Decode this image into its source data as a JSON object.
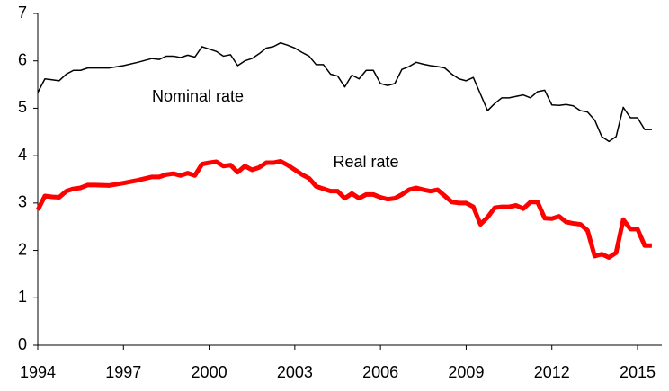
{
  "chart_data": {
    "type": "line",
    "x": [
      1994,
      1994.25,
      1994.5,
      1994.75,
      1995,
      1995.25,
      1995.5,
      1995.75,
      1996,
      1996.5,
      1997,
      1997.5,
      1998,
      1998.25,
      1998.5,
      1998.75,
      1999,
      1999.25,
      1999.5,
      1999.75,
      2000,
      2000.25,
      2000.5,
      2000.75,
      2001,
      2001.25,
      2001.5,
      2001.75,
      2002,
      2002.25,
      2002.5,
      2002.75,
      2003,
      2003.25,
      2003.5,
      2003.75,
      2004,
      2004.25,
      2004.5,
      2004.75,
      2005,
      2005.25,
      2005.5,
      2005.75,
      2006,
      2006.25,
      2006.5,
      2006.75,
      2007,
      2007.25,
      2007.5,
      2007.75,
      2008,
      2008.25,
      2008.5,
      2008.75,
      2009,
      2009.25,
      2009.5,
      2009.75,
      2010,
      2010.25,
      2010.5,
      2010.75,
      2011,
      2011.25,
      2011.5,
      2011.75,
      2012,
      2012.25,
      2012.5,
      2012.75,
      2013,
      2013.25,
      2013.5,
      2013.75,
      2014,
      2014.25,
      2014.5,
      2014.75,
      2015,
      2015.25,
      2015.5
    ],
    "series": [
      {
        "name": "Nominal rate",
        "color": "#000000",
        "width": 1.5,
        "values": [
          5.33,
          5.62,
          5.6,
          5.58,
          5.72,
          5.8,
          5.8,
          5.85,
          5.85,
          5.85,
          5.9,
          5.97,
          6.05,
          6.03,
          6.1,
          6.1,
          6.07,
          6.12,
          6.08,
          6.3,
          6.25,
          6.2,
          6.1,
          6.13,
          5.9,
          6.0,
          6.05,
          6.15,
          6.27,
          6.3,
          6.38,
          6.33,
          6.27,
          6.18,
          6.1,
          5.92,
          5.92,
          5.72,
          5.68,
          5.45,
          5.7,
          5.62,
          5.8,
          5.8,
          5.52,
          5.48,
          5.52,
          5.82,
          5.88,
          5.97,
          5.93,
          5.9,
          5.88,
          5.85,
          5.72,
          5.62,
          5.58,
          5.65,
          5.3,
          4.95,
          5.1,
          5.22,
          5.22,
          5.25,
          5.28,
          5.22,
          5.35,
          5.38,
          5.07,
          5.06,
          5.08,
          5.05,
          4.95,
          4.92,
          4.75,
          4.4,
          4.3,
          4.4,
          5.02,
          4.8,
          4.8,
          4.55,
          4.55
        ]
      },
      {
        "name": "Real rate",
        "color": "#ff0000",
        "width": 5,
        "values": [
          2.85,
          3.15,
          3.13,
          3.12,
          3.25,
          3.3,
          3.32,
          3.38,
          3.38,
          3.37,
          3.42,
          3.48,
          3.55,
          3.55,
          3.6,
          3.62,
          3.58,
          3.63,
          3.58,
          3.82,
          3.85,
          3.87,
          3.78,
          3.8,
          3.65,
          3.78,
          3.7,
          3.75,
          3.85,
          3.85,
          3.88,
          3.8,
          3.7,
          3.6,
          3.52,
          3.35,
          3.3,
          3.25,
          3.25,
          3.1,
          3.2,
          3.1,
          3.18,
          3.18,
          3.12,
          3.08,
          3.1,
          3.18,
          3.28,
          3.32,
          3.28,
          3.25,
          3.28,
          3.15,
          3.02,
          3.0,
          3.0,
          2.92,
          2.55,
          2.7,
          2.9,
          2.92,
          2.92,
          2.95,
          2.88,
          3.02,
          3.02,
          2.68,
          2.67,
          2.72,
          2.6,
          2.57,
          2.55,
          2.42,
          1.88,
          1.92,
          1.85,
          1.95,
          2.65,
          2.45,
          2.45,
          2.1,
          2.1
        ]
      }
    ],
    "xlim": [
      1994,
      2015.85
    ],
    "ylim": [
      0,
      7
    ],
    "xticks": [
      1994,
      1997,
      2000,
      2003,
      2006,
      2009,
      2012,
      2015
    ],
    "yticks": [
      0,
      1,
      2,
      3,
      4,
      5,
      6,
      7
    ],
    "grid": false
  }
}
